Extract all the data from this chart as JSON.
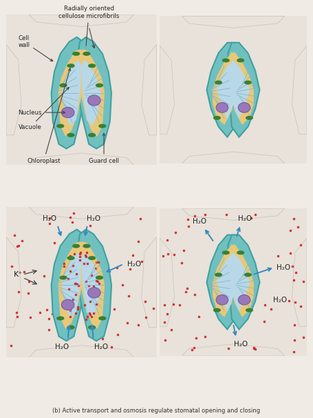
{
  "fig_bg": "#f0ebe4",
  "panel_bg_top": "#ddd8d0",
  "panel_bg_bot": "#d8e4e4",
  "epidermal_fill": "#e8e2da",
  "epidermal_edge": "#c8c0b8",
  "teal_outer": "#70c0c0",
  "teal_edge": "#40a0a0",
  "tan_fill": "#e8c878",
  "vacuole_fill": "#b8d8e8",
  "nucleus_fill": "#9878b8",
  "nucleus_edge": "#7858a0",
  "chloro_fill": "#3a8030",
  "microfibril_color": "#88b8c8",
  "arrow_blue": "#3888c0",
  "dot_red": "#cc2828",
  "text_dark": "#222222",
  "h2o_text": "H₂O",
  "kplus_text": "K⁺",
  "caption": "(b) Active transport and osmosis regulate stomatal opening and closing",
  "label_cell_wall": "Cell\nwall",
  "label_radially": "Radially oriented\ncellulose microfibrils",
  "label_nucleus": "Nucleus",
  "label_vacuole": "Vacuole",
  "label_chloroplast": "Chloroplast",
  "label_guard_cell": "Guard cell"
}
